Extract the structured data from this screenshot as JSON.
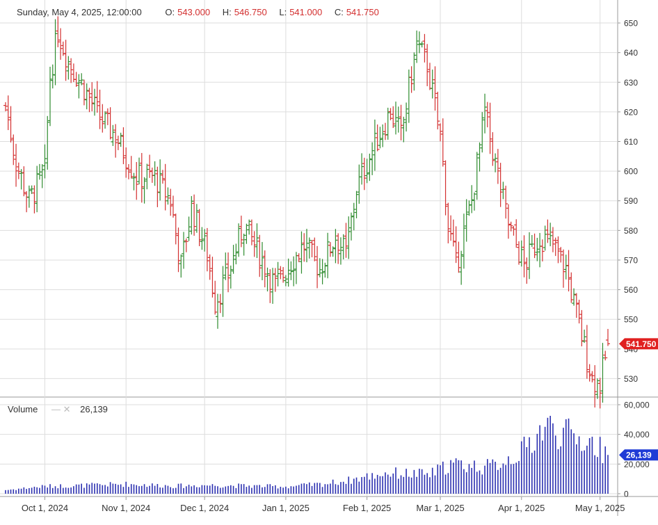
{
  "header": {
    "datetime": "Sunday, May 4, 2025, 12:00:00",
    "o_label": "O:",
    "o_value": "543.000",
    "h_label": "H:",
    "h_value": "546.750",
    "l_label": "L:",
    "l_value": "541.000",
    "c_label": "C:",
    "c_value": "541.750"
  },
  "volume_header": {
    "label": "Volume",
    "value": "26,139"
  },
  "colors": {
    "up": "#2e8b2e",
    "down": "#d32f2f",
    "volume": "#2a2fb0",
    "volume_flag": "#1f3bd6",
    "price_flag": "#e02020",
    "grid": "#dddddd"
  },
  "chart_data": [
    {
      "type": "ohlc",
      "price_ticks": [
        "650",
        "640",
        "630",
        "620",
        "610",
        "600",
        "590",
        "580",
        "570",
        "560",
        "550",
        "540",
        "530"
      ],
      "ylim": [
        524,
        654
      ],
      "x_ticks": [
        "Oct 1, 2024",
        "Nov 1, 2024",
        "Dec 1, 2024",
        "Jan 1, 2025",
        "Feb 1, 2025",
        "Mar 1, 2025",
        "Apr 1, 2025",
        "May 1, 2025"
      ],
      "last_price_label": "541.750",
      "close_anchors": [
        [
          "2024-09-16",
          622
        ],
        [
          "2024-09-20",
          603
        ],
        [
          "2024-09-25",
          590
        ],
        [
          "2024-10-01",
          600
        ],
        [
          "2024-10-03",
          632
        ],
        [
          "2024-10-06",
          647
        ],
        [
          "2024-10-10",
          637
        ],
        [
          "2024-10-16",
          628
        ],
        [
          "2024-10-22",
          618
        ],
        [
          "2024-10-28",
          612
        ],
        [
          "2024-11-01",
          605
        ],
        [
          "2024-11-05",
          598
        ],
        [
          "2024-11-12",
          598
        ],
        [
          "2024-11-18",
          590
        ],
        [
          "2024-11-22",
          568
        ],
        [
          "2024-11-26",
          588
        ],
        [
          "2024-12-02",
          572
        ],
        [
          "2024-12-05",
          556
        ],
        [
          "2024-12-10",
          565
        ],
        [
          "2024-12-16",
          582
        ],
        [
          "2024-12-23",
          570
        ],
        [
          "2024-12-28",
          561
        ],
        [
          "2025-01-02",
          568
        ],
        [
          "2025-01-08",
          575
        ],
        [
          "2025-01-14",
          567
        ],
        [
          "2025-01-20",
          578
        ],
        [
          "2025-01-24",
          572
        ],
        [
          "2025-01-28",
          594
        ],
        [
          "2025-02-03",
          607
        ],
        [
          "2025-02-10",
          620
        ],
        [
          "2025-02-14",
          612
        ],
        [
          "2025-02-20",
          643
        ],
        [
          "2025-02-24",
          636
        ],
        [
          "2025-03-01",
          612
        ],
        [
          "2025-03-04",
          582
        ],
        [
          "2025-03-07",
          568
        ],
        [
          "2025-03-13",
          590
        ],
        [
          "2025-03-18",
          620
        ],
        [
          "2025-03-23",
          598
        ],
        [
          "2025-03-27",
          582
        ],
        [
          "2025-04-02",
          568
        ],
        [
          "2025-04-08",
          578
        ],
        [
          "2025-04-13",
          575
        ],
        [
          "2025-04-18",
          567
        ],
        [
          "2025-04-23",
          548
        ],
        [
          "2025-04-28",
          530
        ],
        [
          "2025-05-01",
          528
        ],
        [
          "2025-05-04",
          541.75
        ]
      ],
      "last_bar": {
        "date": "2025-05-04",
        "open": 543.0,
        "high": 546.75,
        "low": 541.0,
        "close": 541.75
      }
    },
    {
      "type": "bar",
      "series_name": "Volume",
      "y_ticks": [
        "60,000",
        "40,000",
        "20,000",
        "0"
      ],
      "ylim": [
        0,
        60000
      ],
      "volume_anchors": [
        [
          "2024-09-16",
          2500
        ],
        [
          "2024-10-01",
          5000
        ],
        [
          "2024-10-15",
          5500
        ],
        [
          "2024-11-01",
          6500
        ],
        [
          "2024-11-20",
          5200
        ],
        [
          "2024-12-01",
          5800
        ],
        [
          "2024-12-20",
          5200
        ],
        [
          "2025-01-01",
          4800
        ],
        [
          "2025-01-15",
          6500
        ],
        [
          "2025-01-25",
          9000
        ],
        [
          "2025-02-08",
          14000
        ],
        [
          "2025-02-25",
          13000
        ],
        [
          "2025-03-05",
          20000
        ],
        [
          "2025-03-20",
          18000
        ],
        [
          "2025-04-01",
          28000
        ],
        [
          "2025-04-10",
          46000
        ],
        [
          "2025-04-18",
          40000
        ],
        [
          "2025-04-28",
          34000
        ],
        [
          "2025-05-04",
          26139
        ]
      ],
      "last_value_label": "26,139"
    }
  ]
}
